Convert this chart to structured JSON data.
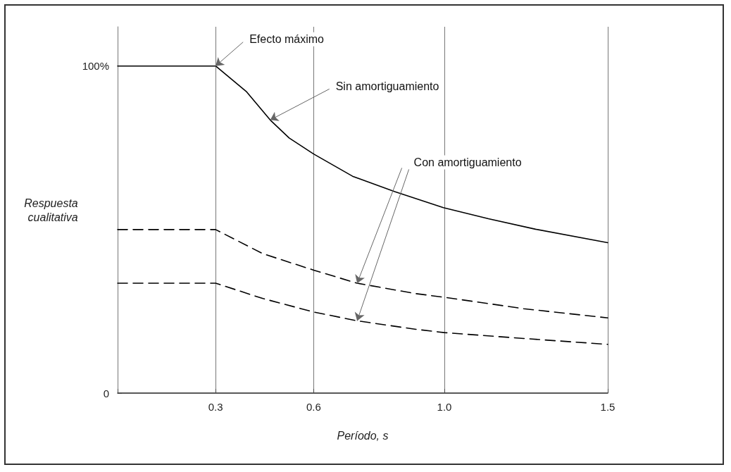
{
  "chart_data": {
    "type": "line",
    "xlabel": "Período, s",
    "ylabel": "Respuesta cualitativa",
    "xlim": [
      0,
      1.5
    ],
    "xticks": [
      {
        "value": 0,
        "label": null
      },
      0.3,
      0.6,
      {
        "value": 1,
        "label": "1.0"
      },
      1.5
    ],
    "ylim": [
      0,
      112
    ],
    "yticks": [
      0,
      {
        "value": 100,
        "label": "100%"
      }
    ],
    "grid": "x",
    "marker": "none",
    "series": [
      {
        "color": "#000000",
        "line_style": "solid",
        "x": [
          0,
          0.3,
          0.395,
          0.467,
          0.525,
          0.6,
          0.719,
          0.848,
          0.997,
          1.135,
          1.279,
          1.5
        ],
        "values": [
          100,
          100,
          92.1,
          83.5,
          78.0,
          73.1,
          66.3,
          61.6,
          56.7,
          53.3,
          50.1,
          46.0
        ]
      },
      {
        "color": "#000000",
        "line_style": "dashed",
        "x": [
          0,
          0.3,
          0.445,
          0.6,
          0.733,
          0.913,
          1.0,
          1.243,
          1.5
        ],
        "values": [
          50,
          50,
          42.6,
          37.6,
          33.6,
          30.4,
          29.3,
          25.8,
          23.0
        ]
      },
      {
        "color": "#000000",
        "line_style": "dashed",
        "x": [
          0,
          0.3,
          0.445,
          0.6,
          0.733,
          0.913,
          1.0,
          1.243,
          1.5
        ],
        "values": [
          33.6,
          33.6,
          28.9,
          24.8,
          22.1,
          19.5,
          18.5,
          16.7,
          14.9
        ]
      }
    ],
    "annotations": [
      {
        "text": "Efecto máximo",
        "x": 0.3,
        "y": 100
      },
      {
        "text": "Sin amortiguamiento",
        "x": 0.467,
        "y": 83.5
      },
      {
        "text": "Con amortiguamiento",
        "x": 0.733,
        "y": 33.6
      }
    ]
  }
}
